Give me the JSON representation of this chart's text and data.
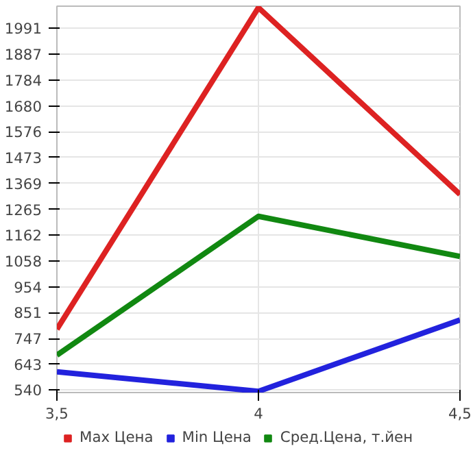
{
  "chart_data": {
    "type": "line",
    "x": [
      3.5,
      4,
      4.5
    ],
    "series": [
      {
        "name": "Max Цена",
        "color": "#dd2222",
        "values": [
          784,
          2074,
          1325
        ]
      },
      {
        "name": "Min Цена",
        "color": "#2222dd",
        "values": [
          613,
          535,
          821
        ]
      },
      {
        "name": "Сред.Цена, т.йен",
        "color": "#118811",
        "values": [
          680,
          1237,
          1076
        ]
      }
    ],
    "xlim": [
      3.5,
      4.5
    ],
    "ylim": [
      530,
      2080
    ],
    "xticks": [
      {
        "value": 3.5,
        "label": "3,5"
      },
      4,
      {
        "value": 4.5,
        "label": "4,5"
      }
    ],
    "yticks": [
      540,
      643,
      747,
      851,
      954,
      1058,
      1162,
      1265,
      1369,
      1473,
      1576,
      1680,
      1784,
      1887,
      1991
    ],
    "grid": true,
    "legend": "bottom",
    "marker": "none",
    "line_style": "solid"
  }
}
